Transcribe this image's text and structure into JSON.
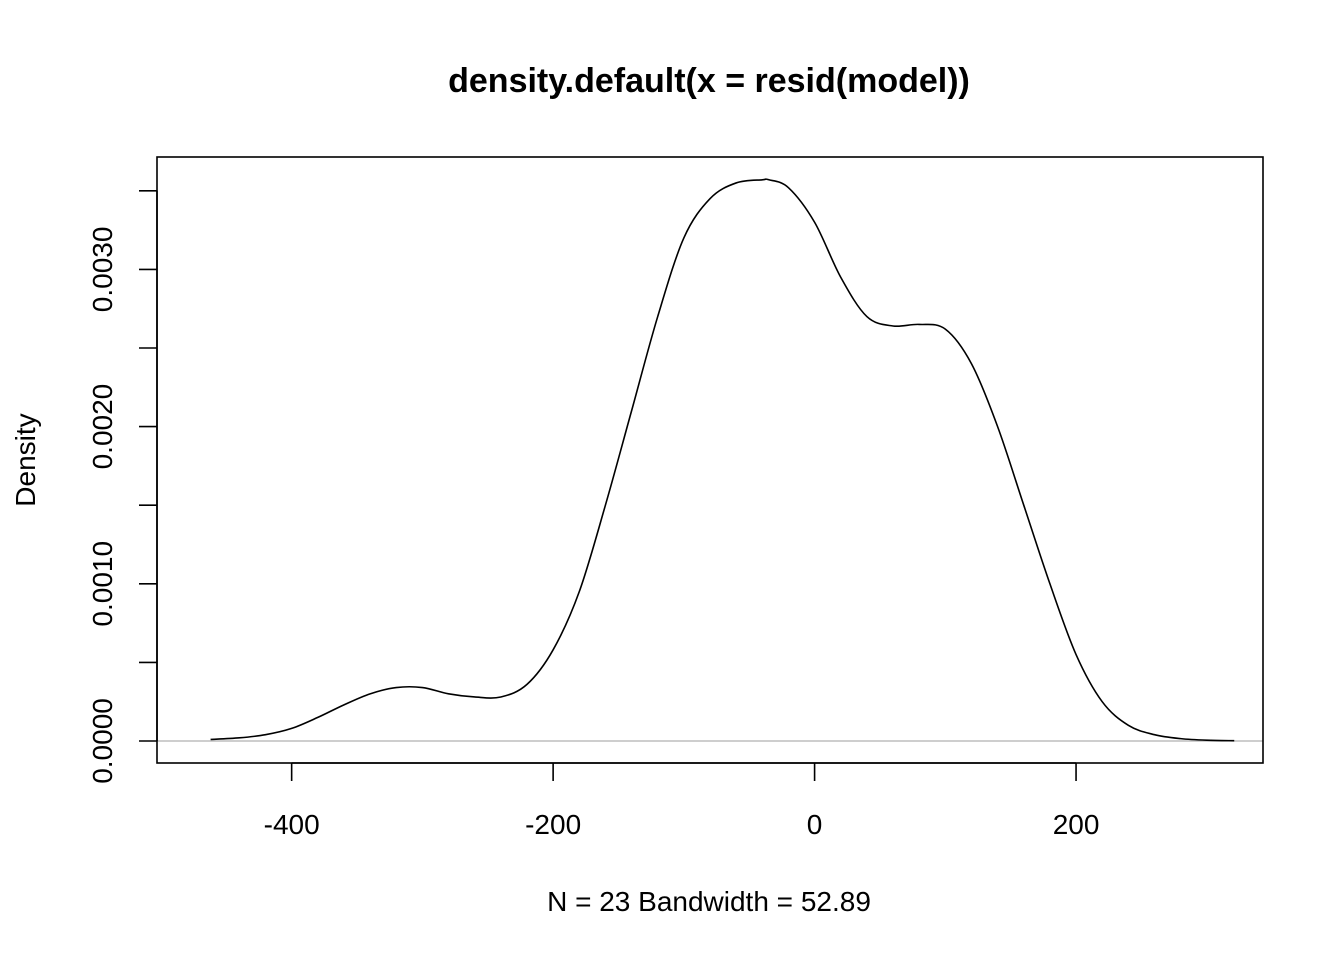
{
  "chart_data": {
    "type": "line",
    "title": "density.default(x = resid(model))",
    "xlabel": "N = 23   Bandwidth = 52.89",
    "ylabel": "Density",
    "xlim": [
      -503,
      343
    ],
    "ylim": [
      -0.00014,
      0.003715
    ],
    "x_ticks": [
      -400,
      -200,
      0,
      200
    ],
    "x_tick_labels": [
      "-400",
      "-200",
      "0",
      "200"
    ],
    "y_ticks": [
      0,
      0.0005,
      0.001,
      0.0015,
      0.002,
      0.0025,
      0.003,
      0.0035
    ],
    "y_tick_labels": [
      "0.0000",
      "",
      "0.0010",
      "",
      "0.0020",
      "",
      "0.0030",
      ""
    ],
    "grid": false,
    "baseline": 0,
    "series": [
      {
        "x": [
          -462,
          -440,
          -420,
          -400,
          -380,
          -360,
          -340,
          -320,
          -300,
          -280,
          -260,
          -240,
          -220,
          -200,
          -180,
          -160,
          -140,
          -120,
          -100,
          -80,
          -60,
          -40,
          -35,
          -20,
          0,
          20,
          40,
          60,
          80,
          100,
          120,
          140,
          160,
          180,
          200,
          220,
          240,
          260,
          280,
          300,
          321
        ],
        "y": [
          1e-05,
          2e-05,
          4e-05,
          8e-05,
          0.00015,
          0.00023,
          0.0003,
          0.00034,
          0.00034,
          0.0003,
          0.00028,
          0.00028,
          0.00036,
          0.00058,
          0.00095,
          0.0015,
          0.0021,
          0.0027,
          0.0032,
          0.00345,
          0.00355,
          0.00357,
          0.00357,
          0.00352,
          0.0033,
          0.00295,
          0.0027,
          0.00264,
          0.00265,
          0.00262,
          0.0024,
          0.002,
          0.0015,
          0.001,
          0.00055,
          0.00025,
          0.0001,
          4e-05,
          1.5e-05,
          5e-06,
          2e-06
        ]
      }
    ]
  }
}
